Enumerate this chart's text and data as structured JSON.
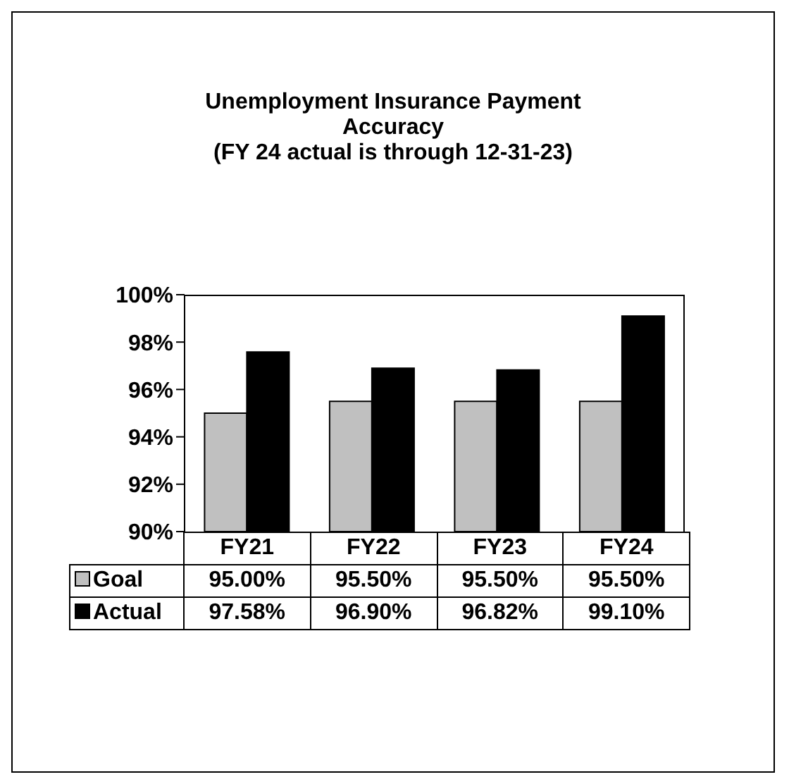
{
  "chart_data": {
    "type": "bar",
    "title": "Unemployment Insurance Payment Accuracy",
    "subtitle": "(FY 24 actual is through 12-31-23)",
    "categories": [
      "FY21",
      "FY22",
      "FY23",
      "FY24"
    ],
    "series": [
      {
        "name": "Goal",
        "color": "#c0c0c0",
        "values": [
          95.0,
          95.5,
          95.5,
          95.5
        ],
        "value_labels": [
          "95.00%",
          "95.50%",
          "95.50%",
          "95.50%"
        ]
      },
      {
        "name": "Actual",
        "color": "#000000",
        "values": [
          97.58,
          96.9,
          96.82,
          99.1
        ],
        "value_labels": [
          "97.58%",
          "96.90%",
          "96.82%",
          "99.10%"
        ]
      }
    ],
    "ylim": [
      90,
      100
    ],
    "yticks": [
      {
        "value": 90,
        "label": "90%"
      },
      {
        "value": 92,
        "label": "92%"
      },
      {
        "value": 94,
        "label": "94%"
      },
      {
        "value": 96,
        "label": "96%"
      },
      {
        "value": 98,
        "label": "98%"
      },
      {
        "value": 100,
        "label": "100%"
      }
    ],
    "grid": false,
    "legend": "bottom"
  }
}
